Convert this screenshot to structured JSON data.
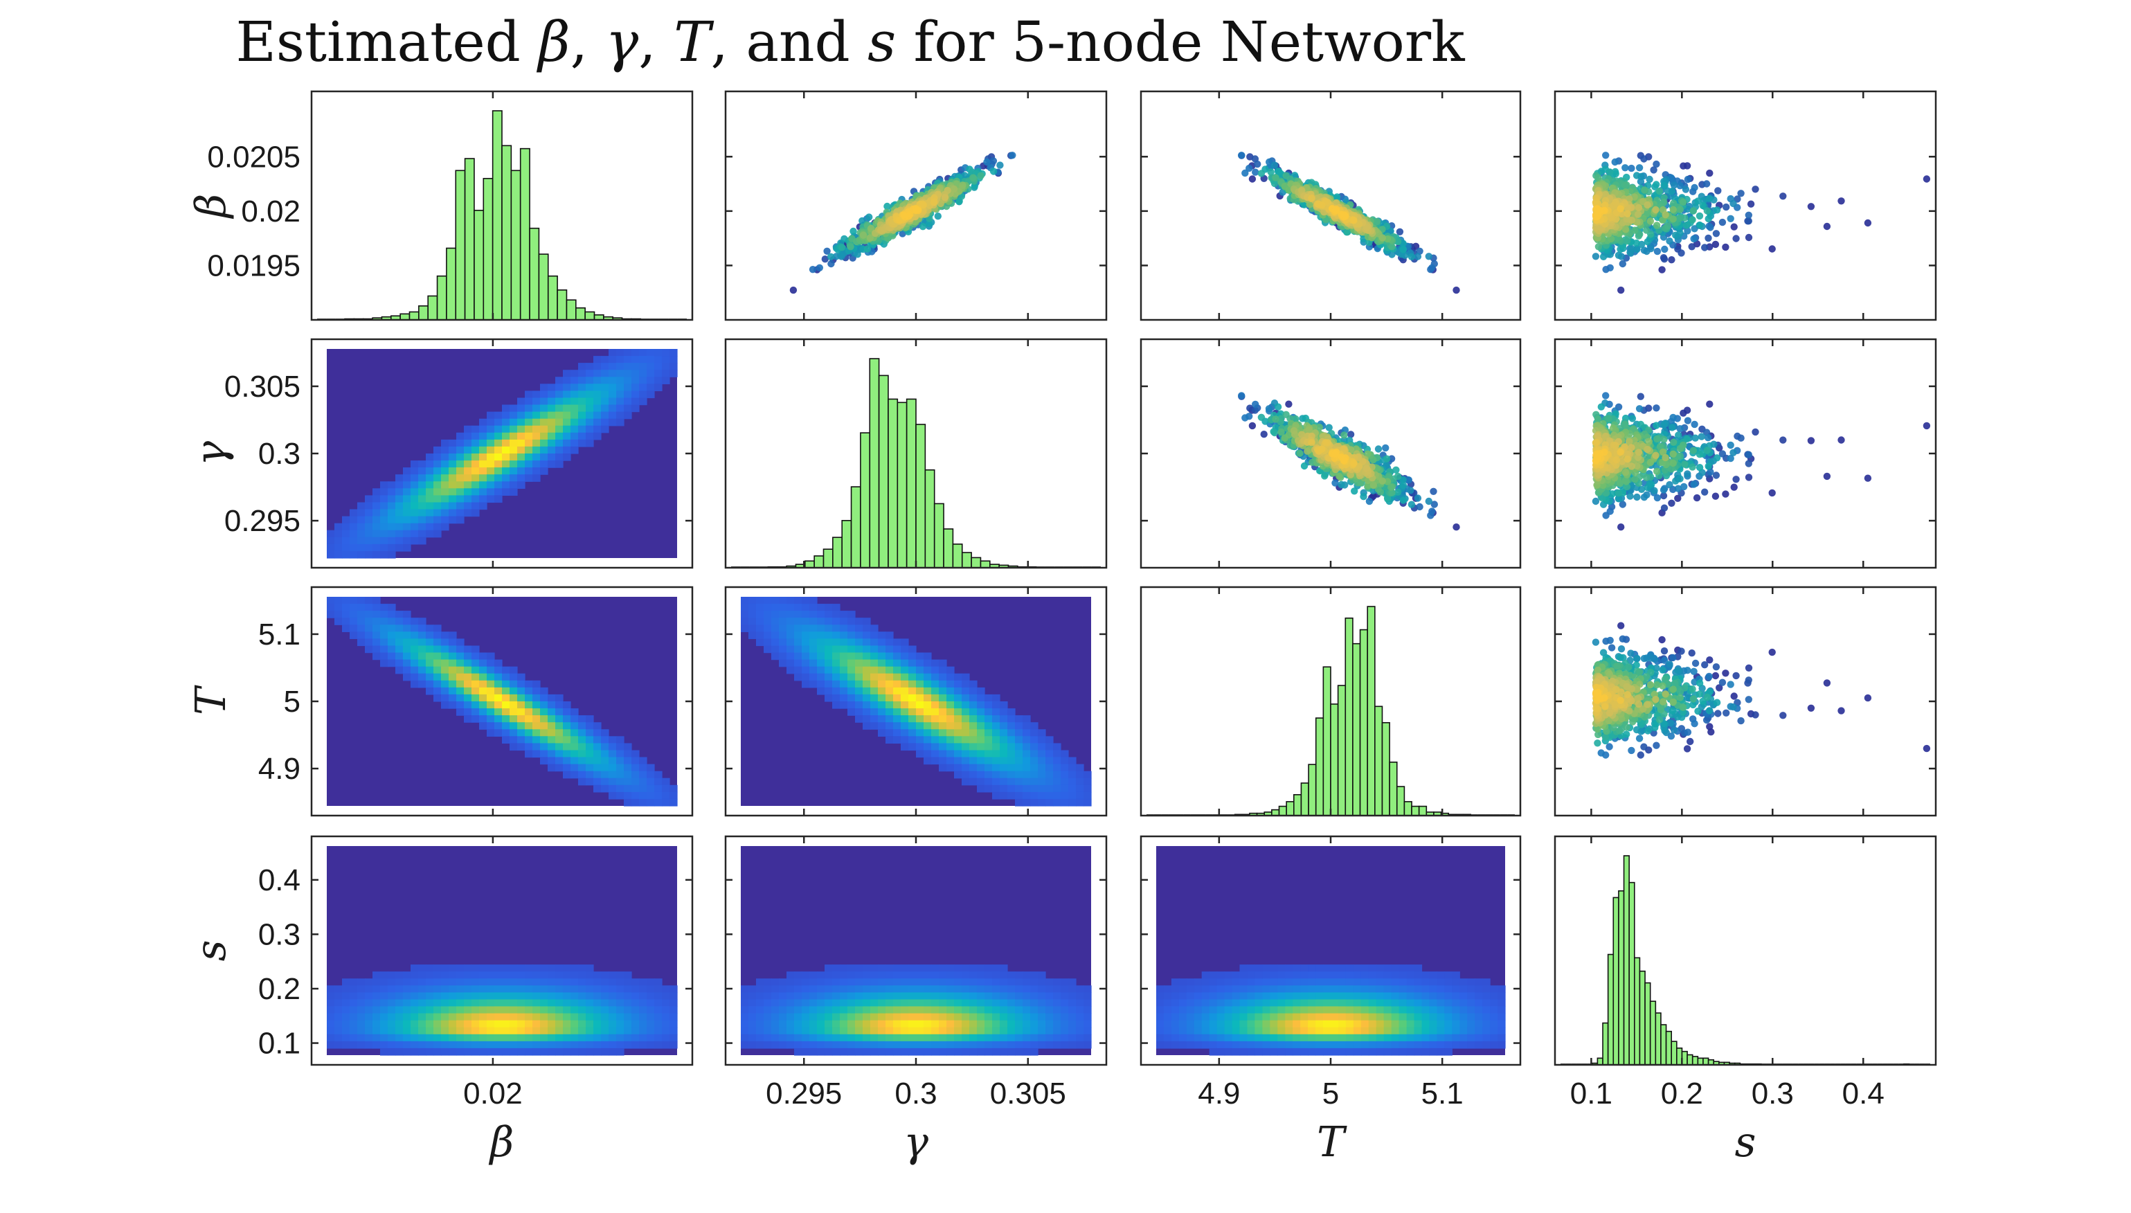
{
  "title": {
    "parts": [
      {
        "text": "Estimated ",
        "italic": false
      },
      {
        "text": "β",
        "italic": true
      },
      {
        "text": ", ",
        "italic": false
      },
      {
        "text": "γ",
        "italic": true
      },
      {
        "text": ", ",
        "italic": false
      },
      {
        "text": "T",
        "italic": true
      },
      {
        "text": ", and ",
        "italic": false
      },
      {
        "text": "s",
        "italic": true
      },
      {
        "text": " for 5-node Network",
        "italic": false
      }
    ]
  },
  "colors": {
    "histogram_fill": "#90ee7e",
    "density_background": "#3f2f9a",
    "scatter_low": "#2c3fb0",
    "scatter_mid": "#1fb0a8",
    "scatter_high": "#f5c93a"
  },
  "chart_data": {
    "type": "pair-plot",
    "layout": "4x4 grid: histograms on diagonal, scatter plots above diagonal, density heatmaps below diagonal",
    "variables": [
      {
        "key": "beta",
        "label": "β",
        "range": [
          0.019,
          0.0211
        ],
        "ticks": [
          "0.0195",
          "0.02",
          "0.0205"
        ],
        "tick_values": [
          0.0195,
          0.02,
          0.0205
        ],
        "xticks": [
          "0.02"
        ],
        "xtick_values": [
          0.02
        ],
        "mean": 0.02,
        "sd": 0.00018
      },
      {
        "key": "gamma",
        "label": "γ",
        "range": [
          0.2915,
          0.3085
        ],
        "ticks": [
          "0.295",
          "0.3",
          "0.305"
        ],
        "tick_values": [
          0.295,
          0.3,
          0.305
        ],
        "xticks": [
          "0.295",
          "0.3",
          "0.305"
        ],
        "xtick_values": [
          0.295,
          0.3,
          0.305
        ],
        "mean": 0.2999,
        "sd": 0.0015
      },
      {
        "key": "T",
        "label": "T",
        "range": [
          4.83,
          5.17
        ],
        "ticks": [
          "4.9",
          "5",
          "5.1"
        ],
        "tick_values": [
          4.9,
          5.0,
          5.1
        ],
        "xticks": [
          "4.9",
          "5",
          "5.1"
        ],
        "xtick_values": [
          4.9,
          5.0,
          5.1
        ],
        "mean": 5.005,
        "sd": 0.03
      },
      {
        "key": "s",
        "label": "s",
        "range": [
          0.06,
          0.48
        ],
        "ticks": [
          "0.1",
          "0.2",
          "0.3",
          "0.4"
        ],
        "tick_values": [
          0.1,
          0.2,
          0.3,
          0.4
        ],
        "xticks": [
          "0.1",
          "0.2",
          "0.3",
          "0.4"
        ],
        "xtick_values": [
          0.1,
          0.2,
          0.3,
          0.4
        ],
        "mean": 0.14,
        "sd": 0.035
      }
    ],
    "correlations": {
      "beta_gamma": 0.93,
      "beta_T": -0.95,
      "gamma_T": -0.9,
      "beta_s": 0.0,
      "gamma_s": 0.0,
      "T_s": 0.0
    },
    "histograms": {
      "beta": [
        0,
        0,
        0,
        1,
        1,
        1,
        2,
        3,
        4,
        6,
        8,
        14,
        24,
        44,
        72,
        150,
        162,
        110,
        142,
        210,
        175,
        150,
        172,
        92,
        66,
        44,
        30,
        20,
        12,
        8,
        5,
        3,
        2,
        1,
        1,
        0,
        0,
        0,
        0,
        0
      ],
      "gamma": [
        0,
        0,
        0,
        0,
        1,
        1,
        2,
        4,
        8,
        14,
        22,
        36,
        56,
        96,
        160,
        248,
        228,
        200,
        196,
        200,
        170,
        116,
        76,
        46,
        28,
        18,
        12,
        8,
        4,
        3,
        2,
        1,
        1,
        0,
        0,
        0,
        0,
        0,
        0,
        0
      ],
      "T": [
        0,
        0,
        0,
        0,
        0,
        0,
        0,
        0,
        0,
        0,
        0,
        0,
        1,
        1,
        2,
        2,
        3,
        5,
        8,
        12,
        18,
        28,
        44,
        84,
        128,
        96,
        112,
        170,
        148,
        160,
        180,
        94,
        80,
        46,
        25,
        12,
        8,
        8,
        3,
        3,
        2,
        1,
        1,
        1,
        0,
        0,
        0,
        0,
        0,
        0
      ],
      "s": [
        0,
        0,
        0,
        0,
        0,
        0,
        2,
        8,
        50,
        132,
        200,
        208,
        250,
        218,
        128,
        112,
        98,
        76,
        62,
        48,
        40,
        28,
        20,
        16,
        12,
        10,
        8,
        8,
        6,
        4,
        3,
        3,
        2,
        2,
        1,
        1,
        1,
        1,
        0,
        0,
        0,
        0,
        0,
        0,
        0,
        0,
        0,
        0,
        0,
        0,
        0,
        0,
        0,
        0,
        0,
        0,
        0,
        0,
        0,
        0,
        0,
        0,
        0,
        0,
        0,
        1,
        0,
        0,
        0,
        0
      ]
    },
    "scatter_point_count": 900,
    "grid": false
  }
}
